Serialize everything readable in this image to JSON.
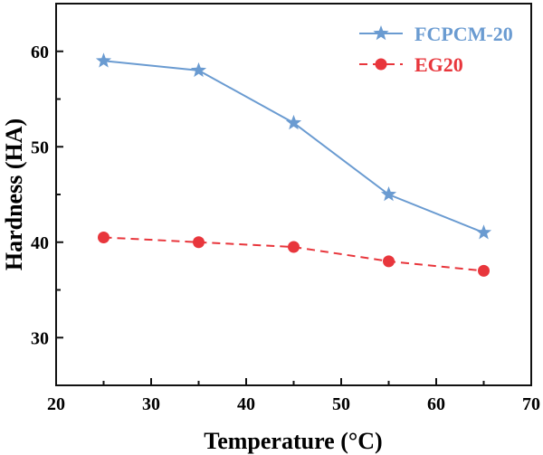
{
  "chart_data": {
    "type": "line",
    "title": "",
    "xlabel": "Temperature (°C)",
    "ylabel": "Hardness (HA)",
    "xlim": [
      20,
      70
    ],
    "ylim": [
      25,
      65
    ],
    "xticks": [
      20,
      30,
      40,
      50,
      60,
      70
    ],
    "yticks": [
      30,
      40,
      50,
      60
    ],
    "grid": false,
    "legend_position": "top-right",
    "x": [
      25,
      35,
      45,
      55,
      65
    ],
    "series": [
      {
        "name": "FCPCM-20",
        "values": [
          59,
          58,
          52.5,
          45,
          41
        ],
        "color": "#6A9BD1",
        "marker": "star",
        "line": "solid"
      },
      {
        "name": "EG20",
        "values": [
          40.5,
          40,
          39.5,
          38,
          37
        ],
        "color": "#E8363C",
        "marker": "circle",
        "line": "dashed"
      }
    ]
  }
}
